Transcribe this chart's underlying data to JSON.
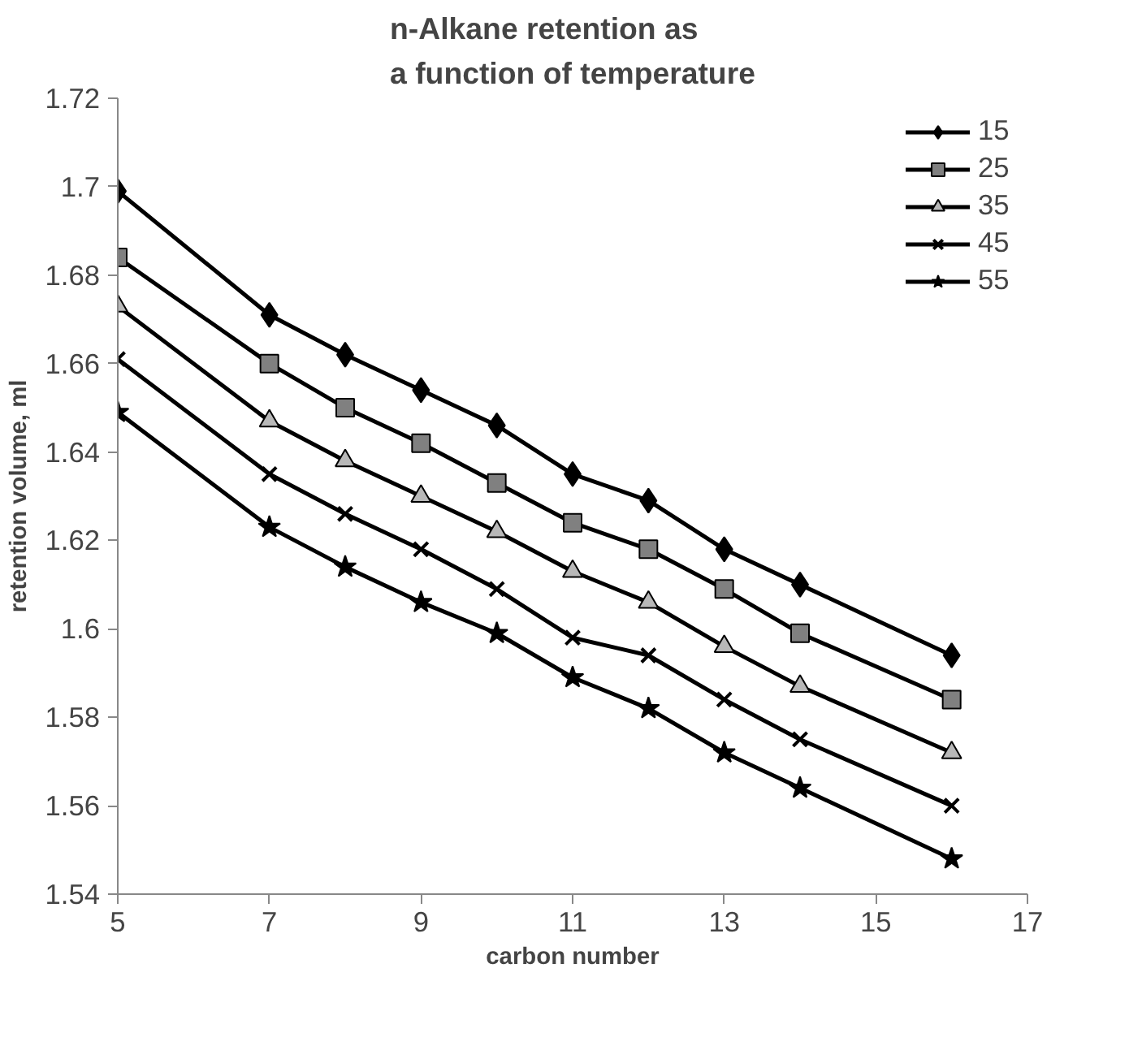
{
  "chart_data": {
    "type": "line",
    "title": "n-Alkane retention as\na function of temperature",
    "xlabel": "carbon number",
    "ylabel": "retention volume, ml",
    "x": [
      5,
      7,
      8,
      9,
      10,
      11,
      12,
      13,
      14,
      16
    ],
    "xlim": [
      5,
      17
    ],
    "xticks": [
      5,
      7,
      9,
      11,
      13,
      15,
      17
    ],
    "ylim": [
      1.54,
      1.72
    ],
    "yticks": [
      1.54,
      1.56,
      1.58,
      1.6,
      1.62,
      1.64,
      1.66,
      1.68,
      {
        "value": 1.7,
        "label": "1.7"
      },
      1.72
    ],
    "grid": false,
    "legend": "top right",
    "line_style": "solid",
    "series": [
      {
        "name": "15",
        "color": "#000000",
        "marker": "diamond",
        "values": [
          1.699,
          1.671,
          1.662,
          1.654,
          1.646,
          1.635,
          1.629,
          1.618,
          1.61,
          1.594
        ]
      },
      {
        "name": "25",
        "color": "#808080",
        "marker": "square",
        "values": [
          1.684,
          1.66,
          1.65,
          1.642,
          1.633,
          1.624,
          1.618,
          1.609,
          1.599,
          1.584
        ]
      },
      {
        "name": "35",
        "color": "#b8b8b8",
        "marker": "triangle",
        "values": [
          1.673,
          1.647,
          1.638,
          1.63,
          1.622,
          1.613,
          1.606,
          1.596,
          1.587,
          1.572
        ]
      },
      {
        "name": "45",
        "color": "#000000",
        "marker": "cross",
        "values": [
          1.661,
          1.635,
          1.626,
          1.618,
          1.609,
          1.598,
          1.594,
          1.584,
          1.575,
          1.56
        ]
      },
      {
        "name": "55",
        "color": "#000000",
        "marker": "star",
        "values": [
          1.649,
          1.623,
          1.614,
          1.606,
          1.599,
          1.589,
          1.582,
          1.572,
          1.564,
          1.548
        ]
      }
    ]
  }
}
